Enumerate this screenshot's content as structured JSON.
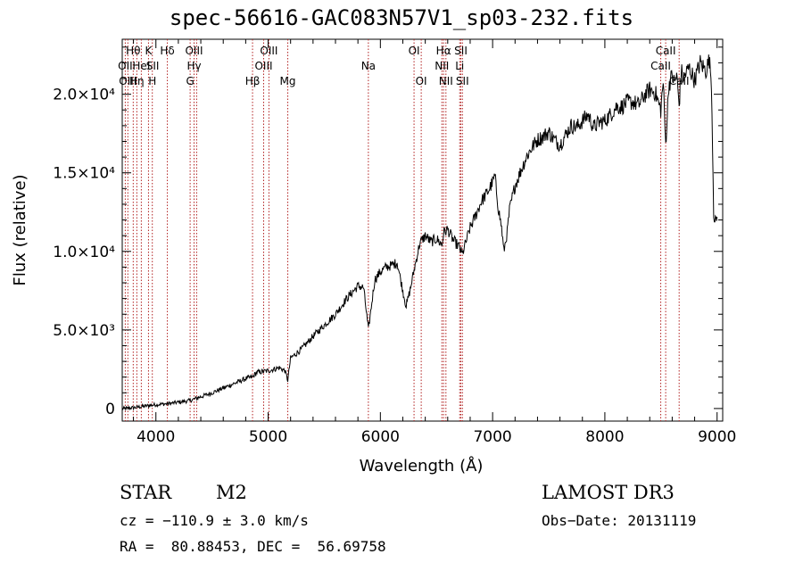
{
  "chart_data": {
    "type": "line",
    "title": "spec-56616-GAC083N57V1_sp03-232.fits",
    "xlabel": "Wavelength (Å)",
    "ylabel": "Flux (relative)",
    "xlim": [
      3700,
      9050
    ],
    "ylim": [
      -800,
      23500
    ],
    "xticks": [
      {
        "value": 4000,
        "label": "4000"
      },
      {
        "value": 5000,
        "label": "5000"
      },
      {
        "value": 6000,
        "label": "6000"
      },
      {
        "value": 7000,
        "label": "7000"
      },
      {
        "value": 8000,
        "label": "8000"
      },
      {
        "value": 9000,
        "label": "9000"
      }
    ],
    "yticks": [
      {
        "value": 0,
        "label": "0"
      },
      {
        "value": 5000,
        "label": "5.0×10³"
      },
      {
        "value": 10000,
        "label": "1.0×10⁴"
      },
      {
        "value": 15000,
        "label": "1.5×10⁴"
      },
      {
        "value": 20000,
        "label": "2.0×10⁴"
      }
    ],
    "series": [
      {
        "name": "flux",
        "x": [
          3700,
          3800,
          3900,
          4000,
          4100,
          4200,
          4300,
          4400,
          4500,
          4600,
          4700,
          4800,
          4860,
          4900,
          4950,
          5000,
          5050,
          5100,
          5150,
          5175,
          5200,
          5300,
          5400,
          5500,
          5600,
          5700,
          5800,
          5850,
          5893,
          5950,
          6000,
          6050,
          6100,
          6150,
          6200,
          6230,
          6270,
          6300,
          6350,
          6400,
          6450,
          6500,
          6550,
          6563,
          6600,
          6650,
          6700,
          6730,
          6750,
          6800,
          6850,
          6900,
          6950,
          7000,
          7020,
          7050,
          7080,
          7100,
          7130,
          7150,
          7200,
          7250,
          7300,
          7350,
          7400,
          7450,
          7500,
          7550,
          7600,
          7650,
          7700,
          7750,
          7800,
          7850,
          7900,
          7950,
          8000,
          8050,
          8100,
          8150,
          8200,
          8250,
          8300,
          8350,
          8400,
          8450,
          8498,
          8520,
          8542,
          8570,
          8600,
          8620,
          8640,
          8662,
          8680,
          8700,
          8750,
          8800,
          8850,
          8900,
          8930,
          8950,
          8970,
          8980,
          8990,
          9000
        ],
        "values": [
          0,
          50,
          150,
          250,
          300,
          400,
          500,
          750,
          1000,
          1300,
          1600,
          1900,
          2000,
          2300,
          2350,
          2400,
          2500,
          2600,
          2400,
          1800,
          3200,
          3800,
          4600,
          5300,
          6000,
          7000,
          7800,
          7700,
          5000,
          8200,
          8700,
          9000,
          9100,
          9300,
          7500,
          6500,
          7700,
          8800,
          10500,
          11000,
          10600,
          10800,
          10400,
          11200,
          11400,
          10700,
          10300,
          9800,
          10300,
          11500,
          12300,
          13200,
          13700,
          14400,
          14800,
          12800,
          11500,
          10000,
          11200,
          12600,
          14200,
          15100,
          16000,
          16600,
          17100,
          17300,
          17600,
          17100,
          16800,
          17400,
          18000,
          17900,
          18300,
          18700,
          17900,
          18200,
          18300,
          18700,
          19200,
          19200,
          19500,
          19500,
          19300,
          19900,
          20300,
          20100,
          19000,
          20800,
          16800,
          20600,
          21200,
          20700,
          21200,
          19300,
          21500,
          21000,
          21700,
          20900,
          22000,
          21500,
          22200,
          20800,
          12500,
          11800,
          12000,
          12200
        ]
      }
    ],
    "line_labels": {
      "upper": [
        {
          "wave": 3798,
          "label": "Hθ",
          "row": 1
        },
        {
          "wave": 3727,
          "label": "OII",
          "row": 2
        },
        {
          "wave": 3870,
          "label": "HeI",
          "row": 2
        },
        {
          "wave": 3934,
          "label": "K",
          "row": 1
        },
        {
          "wave": 3971,
          "label": "SII",
          "row": 2
        },
        {
          "wave": 4102,
          "label": "Hδ",
          "row": 1
        },
        {
          "wave": 4340,
          "label": "OIII",
          "row": 1
        },
        {
          "wave": 4340,
          "label": "Hγ",
          "row": 2
        },
        {
          "wave": 5007,
          "label": "OIII",
          "row": 1
        },
        {
          "wave": 4960,
          "label": "OIII",
          "row": 2
        },
        {
          "wave": 5893,
          "label": "Na",
          "row": 2
        },
        {
          "wave": 6300,
          "label": "OI",
          "row": 1
        },
        {
          "wave": 6563,
          "label": "Hα",
          "row": 1
        },
        {
          "wave": 6717,
          "label": "SII",
          "row": 1
        },
        {
          "wave": 6548,
          "label": "NII",
          "row": 2
        },
        {
          "wave": 6707,
          "label": "Li",
          "row": 2
        },
        {
          "wave": 8542,
          "label": "CaII",
          "row": 1
        },
        {
          "wave": 8498,
          "label": "CaII",
          "row": 2
        }
      ],
      "lower": [
        {
          "wave": 3750,
          "label": "OIII",
          "row": 3
        },
        {
          "wave": 3830,
          "label": "Hη",
          "row": 3
        },
        {
          "wave": 3968,
          "label": "H",
          "row": 3
        },
        {
          "wave": 4305,
          "label": "G",
          "row": 3
        },
        {
          "wave": 4861,
          "label": "Hβ",
          "row": 3
        },
        {
          "wave": 5175,
          "label": "Mg",
          "row": 3
        },
        {
          "wave": 6364,
          "label": "OI",
          "row": 3
        },
        {
          "wave": 6584,
          "label": "NII",
          "row": 3
        },
        {
          "wave": 6731,
          "label": "SII",
          "row": 3
        },
        {
          "wave": 8662,
          "label": "CaII",
          "row": 3
        }
      ],
      "marker_waves": [
        3727,
        3750,
        3798,
        3830,
        3870,
        3934,
        3968,
        4102,
        4305,
        4340,
        4363,
        4861,
        4960,
        5007,
        5175,
        5893,
        6300,
        6364,
        6548,
        6563,
        6584,
        6707,
        6717,
        6731,
        8498,
        8542,
        8662
      ]
    },
    "colors": {
      "line": "#000000",
      "marker": "#b22222",
      "axis": "#000000"
    },
    "grid": false,
    "legend": "none"
  },
  "info": {
    "class": "STAR",
    "subclass": "M2",
    "survey": "LAMOST DR3",
    "cz": "cz = −110.9 ± 3.0 km/s",
    "obsdate": "Obs−Date: 20131119",
    "radec": "RA =  80.88453, DEC =  56.69758"
  }
}
